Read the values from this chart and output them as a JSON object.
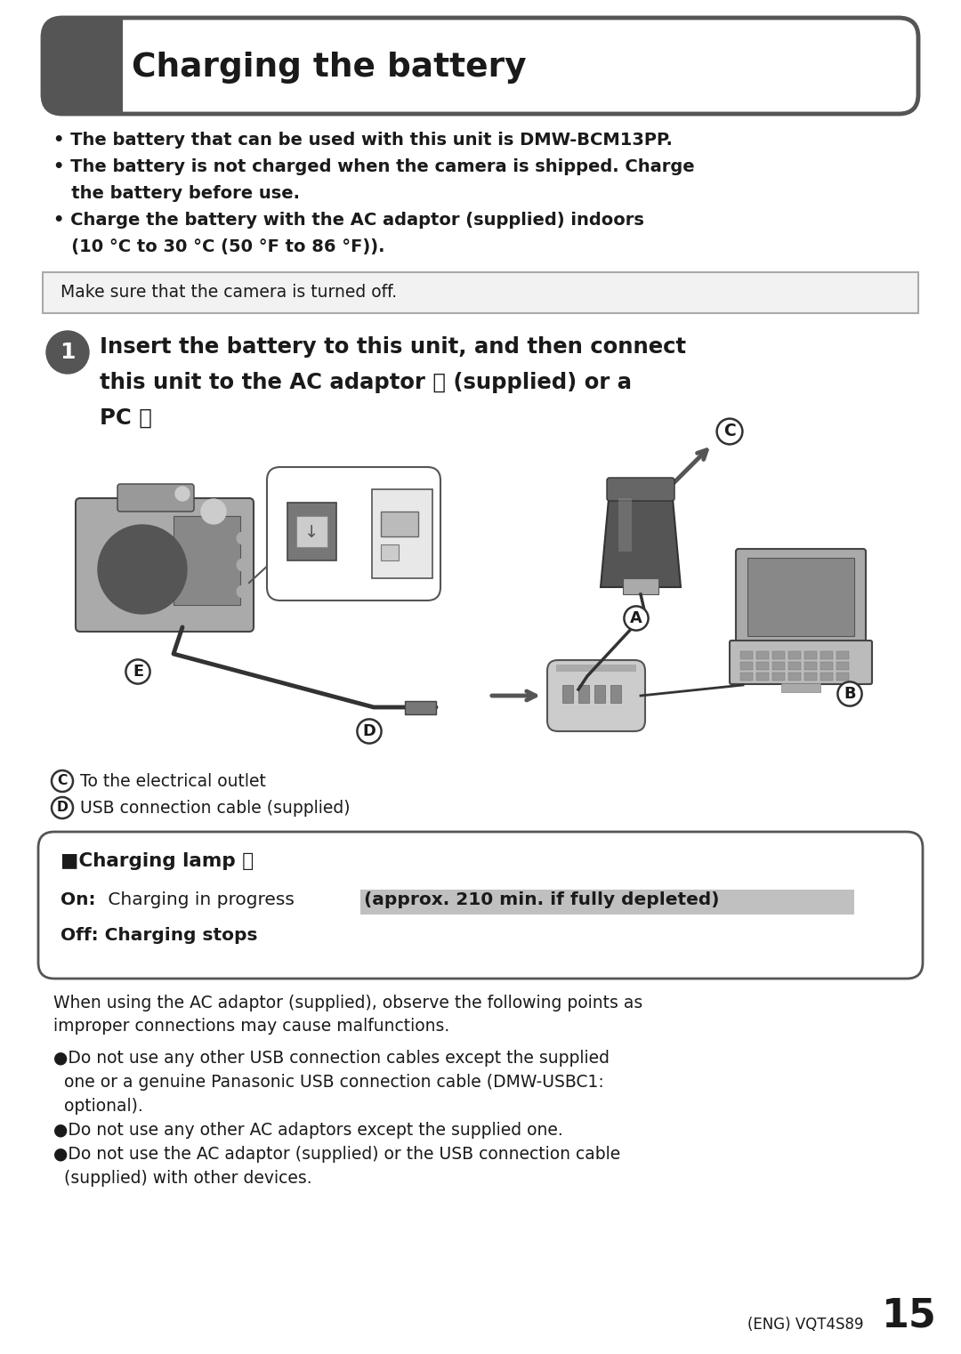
{
  "page_bg": "#ffffff",
  "title_text": "Charging the battery",
  "dark_gray": "#555555",
  "text_color": "#1a1a1a",
  "border_color": "#555555",
  "highlight_bg": "#c0c0c0",
  "charging_highlight": "(approx. 210 min. if fully depleted)",
  "footer_text": "(ENG) VQT4S89",
  "footer_number": "15",
  "notice_text": "Make sure that the camera is turned off.",
  "intro_bullets": [
    "• The battery that can be used with this unit is DMW-BCM13PP.",
    "• The battery is not charged when the camera is shipped. Charge",
    "   the battery before use.",
    "• Charge the battery with the AC adaptor (supplied) indoors",
    "   (10 °C to 30 °C (50 °F to 86 °F))."
  ],
  "step1_lines": [
    "Insert the battery to this unit, and then connect",
    "this unit to the AC adaptor Ⓐ (supplied) or a",
    "PC Ⓑ"
  ],
  "caption_c": "To the electrical outlet",
  "caption_d": "USB connection cable (supplied)",
  "charging_lamp_title": "Charging lamp Ⓔ",
  "on_text_plain": "On: Charging in progress ",
  "on_text_highlight": "(approx. 210 min. if fully depleted)",
  "off_text": "Off: Charging stops",
  "warning_line1": "When using the AC adaptor (supplied), observe the following points as",
  "warning_line2": "improper connections may cause malfunctions.",
  "bullets": [
    "●Do not use any other USB connection cables except the supplied",
    "  one or a genuine Panasonic USB connection cable (DMW-USBC1:",
    "  optional).",
    "●Do not use any other AC adaptors except the supplied one.",
    "●Do not use the AC adaptor (supplied) or the USB connection cable",
    "  (supplied) with other devices."
  ]
}
